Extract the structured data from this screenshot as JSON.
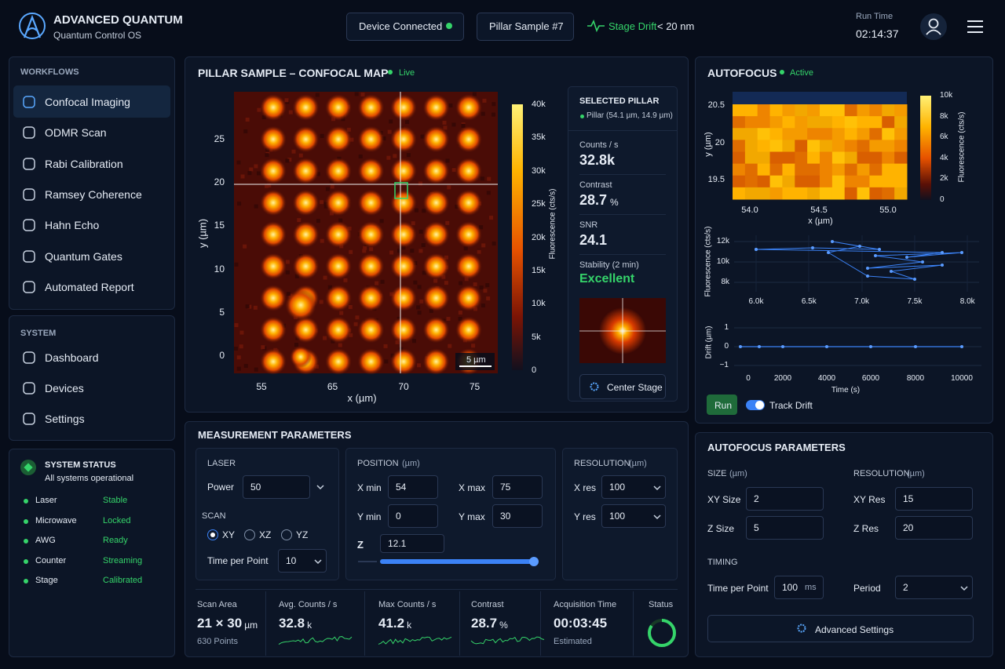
{
  "header": {
    "brand_title": "ADVANCED QUANTUM",
    "brand_subtitle": "Quantum Control OS",
    "device_status": "Device Connected",
    "sample": "Pillar Sample #7",
    "drift_label": "Stage Drift",
    "drift_value": "< 20 nm",
    "run_time_label": "Run Time",
    "run_time": "02:14:37"
  },
  "sidebar": {
    "workflows_title": "WORKFLOWS",
    "workflows": [
      "Confocal Imaging",
      "ODMR Scan",
      "Rabi Calibration",
      "Ramsey Coherence",
      "Hahn Echo",
      "Quantum Gates",
      "Automated Report"
    ],
    "system_title": "SYSTEM",
    "system": [
      "Dashboard",
      "Devices",
      "Settings"
    ]
  },
  "system_status": {
    "title": "SYSTEM STATUS",
    "subtitle": "All systems operational",
    "items": [
      {
        "name": "Laser",
        "state": "Stable"
      },
      {
        "name": "Microwave",
        "state": "Locked"
      },
      {
        "name": "AWG",
        "state": "Ready"
      },
      {
        "name": "Counter",
        "state": "Streaming"
      },
      {
        "name": "Stage",
        "state": "Calibrated"
      }
    ]
  },
  "confocal_map": {
    "title": "PILLAR SAMPLE – CONFOCAL MAP",
    "status": "Live",
    "x_label": "x (µm)",
    "y_label": "y (µm)",
    "xticks": [
      55,
      65,
      70,
      75
    ],
    "yticks": [
      25,
      20,
      15,
      10,
      5,
      0
    ],
    "colorbar_label": "Fluorescence (cts/s)",
    "colorbar_ticks": [
      "40k",
      "35k",
      "30k",
      "25k",
      "20k",
      "15k",
      "10k",
      "5k",
      "0"
    ],
    "scale_bar": "5 µm"
  },
  "selected_pillar": {
    "title": "SELECTED PILLAR",
    "position": "Pillar (54.1 µm, 14.9 µm)",
    "metrics": [
      {
        "label": "Counts / s",
        "value": "32.8k"
      },
      {
        "label": "Contrast",
        "value": "28.7",
        "unit": "%"
      },
      {
        "label": "SNR",
        "value": "24.1"
      },
      {
        "label": "Stability (2 min)",
        "value": "Excellent"
      }
    ],
    "button": "Center Stage"
  },
  "autofocus": {
    "title": "AUTOFOCUS",
    "status": "Active",
    "heatmap": {
      "x_label": "x (µm)",
      "y_label": "y (µm)",
      "xticks": [
        "54.0",
        "54.5",
        "55.0"
      ],
      "yticks": [
        "20.5",
        "20",
        "19.5"
      ],
      "colorbar_label": "Fluorescence (cts/s)",
      "colorbar_ticks": [
        "10k",
        "8k",
        "6k",
        "4k",
        "2k",
        "0"
      ]
    },
    "fluorescence_plot": {
      "y_label": "Fluorescence (cts/s)",
      "yticks": [
        "12k",
        "10k",
        "8k"
      ],
      "xticks": [
        "6.0k",
        "6.5k",
        "7.0k",
        "7.5k",
        "8.0k"
      ]
    },
    "drift_plot": {
      "y_label": "Drift (µm)",
      "yticks": [
        "1",
        "0",
        "−1"
      ],
      "xticks": [
        0,
        2000,
        4000,
        6000,
        8000,
        10000
      ],
      "x_label": "Time (s)"
    },
    "run_button": "Run",
    "track_drift": "Track Drift"
  },
  "measurement": {
    "title": "MEASUREMENT PARAMETERS",
    "laser": {
      "title": "LASER",
      "power_label": "Power",
      "power": "50"
    },
    "scan": {
      "title": "SCAN",
      "options": [
        "XY",
        "XZ",
        "YZ"
      ],
      "time_label": "Time per Point",
      "time": "10"
    },
    "position": {
      "title": "POSITION",
      "unit": "(µm)",
      "fields": [
        {
          "label": "X min",
          "value": "54"
        },
        {
          "label": "X max",
          "value": "75"
        },
        {
          "label": "Y min",
          "value": "0"
        },
        {
          "label": "Y max",
          "value": "30"
        }
      ],
      "z_label": "Z",
      "z": "12.1"
    },
    "resolution": {
      "title": "RESOLUTION",
      "unit": "(µm)",
      "fields": [
        {
          "label": "X res",
          "value": "100"
        },
        {
          "label": "Y res",
          "value": "100"
        }
      ]
    },
    "stats": [
      {
        "label": "Scan Area",
        "value": "21 × 30",
        "unit": "µm",
        "note": "630 Points"
      },
      {
        "label": "Avg. Counts / s",
        "value": "32.8",
        "unit": "k"
      },
      {
        "label": "Max Counts / s",
        "value": "41.2",
        "unit": "k"
      },
      {
        "label": "Contrast",
        "value": "28.7",
        "unit": "%"
      },
      {
        "label": "Acquisition Time",
        "value": "00:03:45",
        "note": "Estimated"
      },
      {
        "label": "Status"
      }
    ]
  },
  "autofocus_params": {
    "title": "AUTOFOCUS PARAMETERS",
    "size_title": "SIZE",
    "size_unit": "(µm)",
    "size_fields": [
      {
        "label": "XY Size",
        "value": "2"
      },
      {
        "label": "Z Size",
        "value": "5"
      }
    ],
    "resolution_title": "RESOLUTION",
    "resolution_unit": "(µm)",
    "resolution_fields": [
      {
        "label": "XY Res",
        "value": "15"
      },
      {
        "label": "Z Res",
        "value": "20"
      }
    ],
    "timing_title": "TIMING",
    "time_label": "Time per Point",
    "time": "100",
    "time_unit": "ms",
    "period_label": "Period",
    "period": "2",
    "advanced": "Advanced Settings"
  }
}
